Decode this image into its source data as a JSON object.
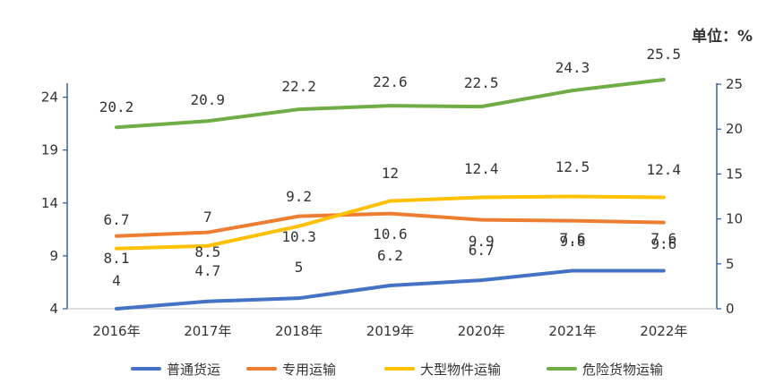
{
  "chart_data": {
    "type": "line",
    "title": "",
    "unit_label": "单位：%",
    "categories": [
      "2016年",
      "2017年",
      "2018年",
      "2019年",
      "2020年",
      "2021年",
      "2022年"
    ],
    "y_left": {
      "range": [
        4,
        26.5
      ],
      "ticks": [
        "4",
        "9",
        "14",
        "19",
        "24"
      ],
      "tick_values": [
        4,
        9,
        14,
        19,
        24
      ]
    },
    "y_right": {
      "range": [
        0,
        26.5
      ],
      "ticks": [
        "0",
        "5",
        "10",
        "15",
        "20",
        "25"
      ],
      "tick_values": [
        0,
        5,
        10,
        15,
        20,
        25
      ]
    },
    "series": [
      {
        "name": "普通货运",
        "color": "#4472C4",
        "axis": "left",
        "values": [
          4,
          4.7,
          5,
          6.2,
          6.7,
          7.6,
          7.6
        ],
        "labels": [
          "4",
          "4.7",
          "5",
          "6.2",
          "6.7",
          "7.6",
          "7.6"
        ]
      },
      {
        "name": "专用运输",
        "color": "#ED7D31",
        "axis": "right",
        "values": [
          8.1,
          8.5,
          10.3,
          10.6,
          9.9,
          9.8,
          9.6
        ],
        "labels": [
          "8.1",
          "8.5",
          "10.3",
          "10.6",
          "9.9",
          "9.8",
          "9.6"
        ]
      },
      {
        "name": "大型物件运输",
        "color": "#FFC000",
        "axis": "right",
        "values": [
          6.7,
          7,
          9.2,
          12,
          12.4,
          12.5,
          12.4
        ],
        "labels": [
          "6.7",
          "7",
          "9.2",
          "12",
          "12.4",
          "12.5",
          "12.4"
        ]
      },
      {
        "name": "危险货物运输",
        "color": "#70AD47",
        "axis": "right",
        "values": [
          20.2,
          20.9,
          22.2,
          22.6,
          22.5,
          24.3,
          25.5
        ],
        "labels": [
          "20.2",
          "20.9",
          "22.2",
          "22.6",
          "22.5",
          "24.3",
          "25.5"
        ]
      }
    ],
    "legend_position": "bottom-center"
  }
}
